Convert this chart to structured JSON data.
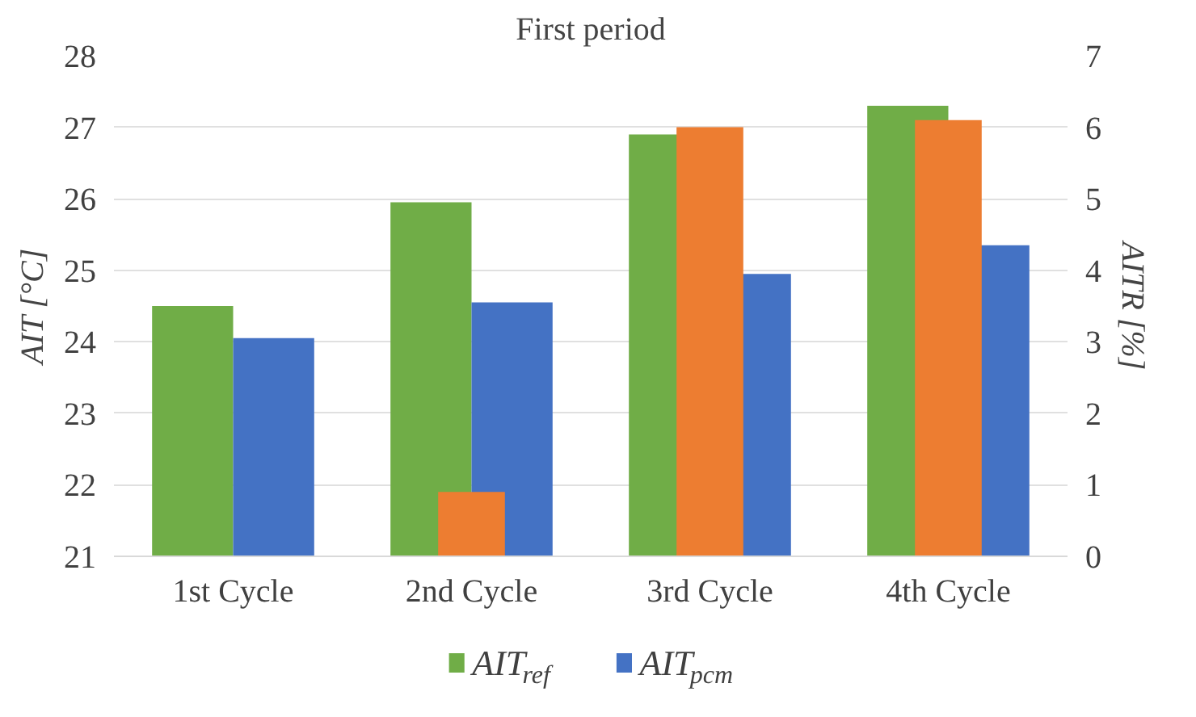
{
  "chart_data": {
    "type": "bar",
    "title": "First period",
    "categories": [
      "1st Cycle",
      "2nd Cycle",
      "3rd Cycle",
      "4th Cycle"
    ],
    "series": [
      {
        "name": "AIT$_{ref}$",
        "color": "#70ad47",
        "values": [
          24.5,
          25.95,
          26.9,
          27.3
        ]
      },
      {
        "name": "AIT$_{pcm}$",
        "color": "#4472c4",
        "values": [
          24.05,
          24.55,
          24.95,
          25.35
        ]
      },
      {
        "color": "#ed7d31",
        "values": [
          0,
          0.9,
          6.0,
          6.1
        ],
        "axis": "y2"
      }
    ],
    "ylabel": "AIT [°C]",
    "y2label": "AITR [%]",
    "ylim": [
      21,
      28
    ],
    "yticks": [
      21,
      22,
      23,
      24,
      25,
      26,
      27,
      28
    ],
    "y2lim": [
      0,
      7
    ],
    "y2ticks": [
      0,
      1,
      2,
      3,
      4,
      5,
      6,
      7
    ],
    "grid": "y",
    "legend": "bottom"
  }
}
